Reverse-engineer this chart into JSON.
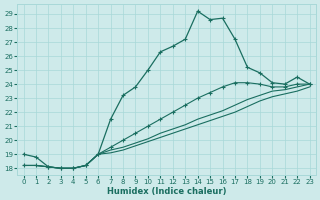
{
  "xlabel": "Humidex (Indice chaleur)",
  "bg_color": "#ceeaea",
  "grid_color": "#a8d8d8",
  "line_color": "#1a6e60",
  "xlim": [
    -0.5,
    23.5
  ],
  "ylim": [
    17.5,
    29.7
  ],
  "yticks": [
    18,
    19,
    20,
    21,
    22,
    23,
    24,
    25,
    26,
    27,
    28,
    29
  ],
  "xticks": [
    0,
    1,
    2,
    3,
    4,
    5,
    6,
    7,
    8,
    9,
    10,
    11,
    12,
    13,
    14,
    15,
    16,
    17,
    18,
    19,
    20,
    21,
    22,
    23
  ],
  "line1_x": [
    0,
    1,
    2,
    3,
    4,
    5,
    6,
    7,
    8,
    9,
    10,
    11,
    12,
    13,
    14,
    15,
    16,
    17,
    18,
    19,
    20,
    21,
    22,
    23
  ],
  "line1_y": [
    19.0,
    18.8,
    18.1,
    18.0,
    18.0,
    18.2,
    19.0,
    21.5,
    23.2,
    23.8,
    25.0,
    26.3,
    26.7,
    27.2,
    29.2,
    28.6,
    28.7,
    27.2,
    25.2,
    24.8,
    24.1,
    24.0,
    24.5,
    24.0
  ],
  "line2_x": [
    0,
    1,
    2,
    3,
    4,
    5,
    6,
    7,
    8,
    9,
    10,
    11,
    12,
    13,
    14,
    15,
    16,
    17,
    18,
    19,
    20,
    21,
    22,
    23
  ],
  "line2_y": [
    18.2,
    18.2,
    18.1,
    18.0,
    18.0,
    18.2,
    19.0,
    19.5,
    20.0,
    20.5,
    21.0,
    21.5,
    22.0,
    22.5,
    23.0,
    23.4,
    23.8,
    24.1,
    24.1,
    24.0,
    23.8,
    23.8,
    24.0,
    24.0
  ],
  "line3_x": [
    0,
    1,
    2,
    3,
    4,
    5,
    6,
    7,
    8,
    9,
    10,
    11,
    12,
    13,
    14,
    15,
    16,
    17,
    18,
    19,
    20,
    21,
    22,
    23
  ],
  "line3_y": [
    18.2,
    18.2,
    18.1,
    18.0,
    18.0,
    18.2,
    19.0,
    19.3,
    19.5,
    19.8,
    20.1,
    20.5,
    20.8,
    21.1,
    21.5,
    21.8,
    22.1,
    22.5,
    22.9,
    23.2,
    23.5,
    23.6,
    23.8,
    24.0
  ],
  "line4_x": [
    0,
    1,
    2,
    3,
    4,
    5,
    6,
    7,
    8,
    9,
    10,
    11,
    12,
    13,
    14,
    15,
    16,
    17,
    18,
    19,
    20,
    21,
    22,
    23
  ],
  "line4_y": [
    18.2,
    18.2,
    18.1,
    18.0,
    18.0,
    18.2,
    19.0,
    19.1,
    19.3,
    19.6,
    19.9,
    20.2,
    20.5,
    20.8,
    21.1,
    21.4,
    21.7,
    22.0,
    22.4,
    22.8,
    23.1,
    23.3,
    23.5,
    23.8
  ]
}
